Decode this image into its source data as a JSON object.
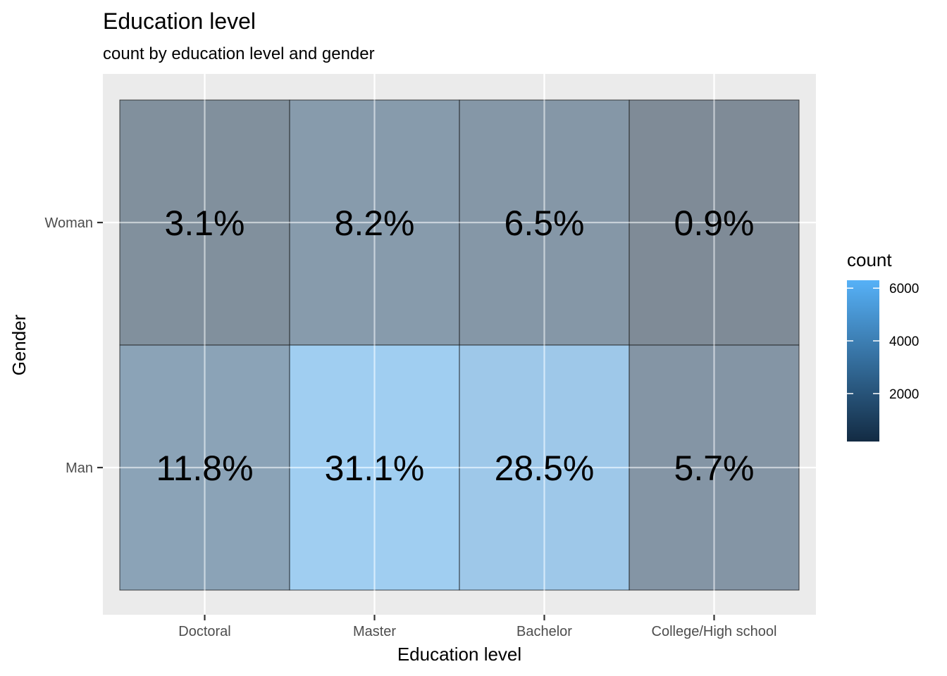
{
  "chart_data": {
    "type": "heatmap",
    "title": "Education level",
    "subtitle": "count by education level and gender",
    "xlabel": "Education level",
    "ylabel": "Gender",
    "x_categories": [
      "Doctoral",
      "Master",
      "Bachelor",
      "College/High school"
    ],
    "y_categories": [
      "Woman",
      "Man"
    ],
    "cells": [
      {
        "x": "Doctoral",
        "y": "Woman",
        "label": "3.1%",
        "count": 620
      },
      {
        "x": "Master",
        "y": "Woman",
        "label": "8.2%",
        "count": 1650
      },
      {
        "x": "Bachelor",
        "y": "Woman",
        "label": "6.5%",
        "count": 1300
      },
      {
        "x": "College/High school",
        "y": "Woman",
        "label": "0.9%",
        "count": 180
      },
      {
        "x": "Doctoral",
        "y": "Man",
        "label": "11.8%",
        "count": 2400
      },
      {
        "x": "Master",
        "y": "Man",
        "label": "31.1%",
        "count": 6300
      },
      {
        "x": "Bachelor",
        "y": "Man",
        "label": "28.5%",
        "count": 5800
      },
      {
        "x": "College/High school",
        "y": "Man",
        "label": "5.7%",
        "count": 1150
      }
    ],
    "legend": {
      "title": "count",
      "ticks": [
        "2000",
        "4000",
        "6000"
      ],
      "range": [
        180,
        6300
      ],
      "low_color": "#132b43",
      "high_color": "#56b1f7",
      "position": "right"
    },
    "grid": true,
    "panel_background": "#ebebeb",
    "cell_alpha": 0.5
  }
}
